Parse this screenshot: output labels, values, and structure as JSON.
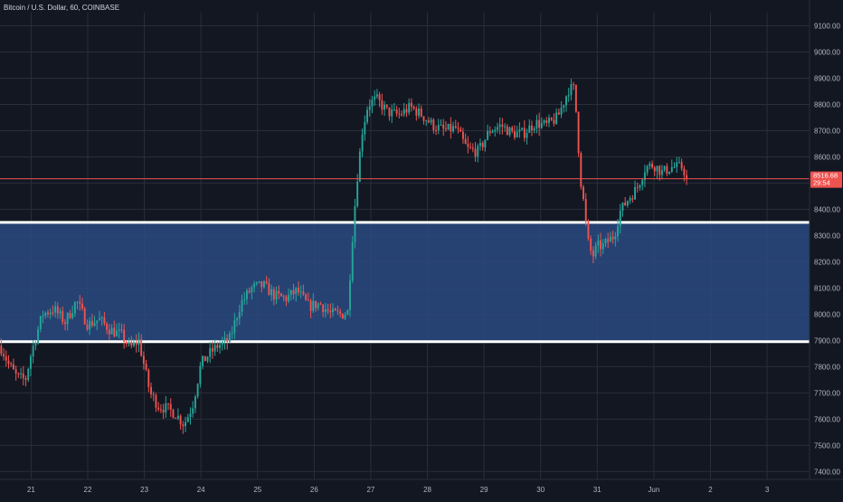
{
  "header": {
    "title": "Bitcoin / U.S. Dollar, 60, COINBASE"
  },
  "colors": {
    "background": "#131722",
    "grid": "#2a2e39",
    "up": "#26a69a",
    "down": "#ef5350",
    "zone_fill": "#2a4a80",
    "zone_lines": "#ffffff",
    "axis_text": "#b2b5be"
  },
  "chart_data": {
    "type": "candlestick",
    "title": "Bitcoin / U.S. Dollar, 60, COINBASE",
    "symbol": "BTCUSD",
    "interval": "60",
    "exchange": "COINBASE",
    "ylim": [
      7370,
      9150
    ],
    "y_ticks": [
      7400,
      7500,
      7600,
      7700,
      7800,
      7900,
      8000,
      8100,
      8200,
      8300,
      8400,
      8500,
      8600,
      8700,
      8800,
      8900,
      9000,
      9100
    ],
    "y_tick_labels": [
      "7400.00",
      "7500.00",
      "7600.00",
      "7700.00",
      "7800.00",
      "7900.00",
      "8000.00",
      "8100.00",
      "8200.00",
      "8300.00",
      "8400.00",
      "8500.00",
      "8600.00",
      "8700.00",
      "8800.00",
      "8900.00",
      "9000.00",
      "9100.00"
    ],
    "x_ticks": [
      {
        "label": "21",
        "day": 21
      },
      {
        "label": "22",
        "day": 22
      },
      {
        "label": "23",
        "day": 23
      },
      {
        "label": "24",
        "day": 24
      },
      {
        "label": "25",
        "day": 25
      },
      {
        "label": "26",
        "day": 26
      },
      {
        "label": "27",
        "day": 27
      },
      {
        "label": "28",
        "day": 28
      },
      {
        "label": "29",
        "day": 29
      },
      {
        "label": "30",
        "day": 30
      },
      {
        "label": "31",
        "day": 31
      },
      {
        "label": "Jun",
        "day": 32
      },
      {
        "label": "2",
        "day": 33
      },
      {
        "label": "3",
        "day": 34
      }
    ],
    "x_range": [
      20.45,
      34.75
    ],
    "path_days": [
      20.45,
      20.52,
      20.6,
      20.75,
      20.9,
      21.0,
      21.2,
      21.4,
      21.6,
      21.8,
      22.0,
      22.2,
      22.4,
      22.6,
      22.75,
      22.9,
      23.0,
      23.1,
      23.25,
      23.4,
      23.55,
      23.7,
      23.85,
      24.0,
      24.15,
      24.3,
      24.5,
      24.7,
      24.9,
      25.1,
      25.3,
      25.5,
      25.7,
      25.9,
      26.1,
      26.3,
      26.5,
      26.6,
      26.65,
      26.75,
      26.85,
      26.95,
      27.1,
      27.3,
      27.5,
      27.7,
      27.9,
      28.1,
      28.3,
      28.5,
      28.7,
      28.9,
      29.1,
      29.3,
      29.5,
      29.7,
      29.9,
      30.1,
      30.3,
      30.5,
      30.6,
      30.65,
      30.72,
      30.78,
      30.82,
      30.87,
      30.92,
      31.0,
      31.1,
      31.2,
      31.3,
      31.4,
      31.55,
      31.7,
      31.85,
      32.0,
      32.15,
      32.3,
      32.5,
      32.6
    ],
    "path_prices": [
      7880,
      7850,
      7810,
      7760,
      7750,
      7850,
      8000,
      8020,
      7970,
      8050,
      7960,
      7980,
      7940,
      7920,
      7870,
      7900,
      7800,
      7700,
      7650,
      7640,
      7620,
      7580,
      7650,
      7810,
      7850,
      7880,
      7900,
      8040,
      8100,
      8110,
      8070,
      8060,
      8090,
      8030,
      8040,
      8000,
      8000,
      8010,
      8220,
      8500,
      8700,
      8800,
      8820,
      8770,
      8760,
      8790,
      8760,
      8720,
      8700,
      8710,
      8630,
      8620,
      8700,
      8720,
      8690,
      8690,
      8730,
      8720,
      8750,
      8860,
      8860,
      8690,
      8480,
      8400,
      8290,
      8250,
      8220,
      8260,
      8260,
      8280,
      8300,
      8390,
      8440,
      8480,
      8560,
      8570,
      8540,
      8560,
      8560,
      8520
    ],
    "candle_count": 280,
    "current_price": 8516.68,
    "current_price_label": "8516.68",
    "countdown_label": "29:54",
    "support_zone": {
      "low": 7895,
      "high": 8350
    }
  }
}
